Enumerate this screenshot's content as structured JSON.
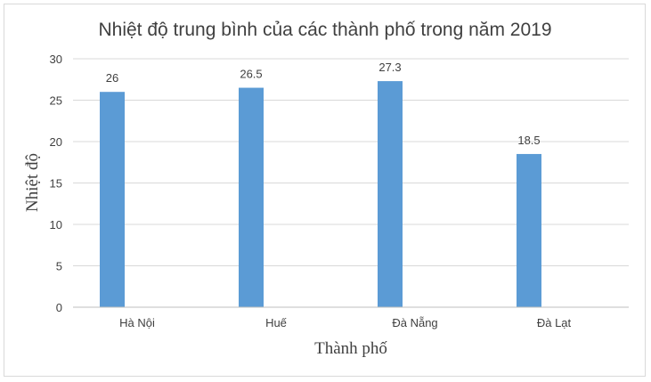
{
  "chart_data": {
    "type": "bar",
    "title": "Nhiệt độ trung bình của các thành phố trong năm 2019",
    "xlabel": "Thành phố",
    "ylabel": "Nhiệt độ",
    "categories": [
      "Hà Nội",
      "Huế",
      "Đà Nẵng",
      "Đà Lạt"
    ],
    "values": [
      26,
      26.5,
      27.3,
      18.5
    ],
    "value_labels": [
      "26",
      "26.5",
      "27.3",
      "18.5"
    ],
    "ylim": [
      0,
      30
    ],
    "yticks": [
      0,
      5,
      10,
      15,
      20,
      25,
      30
    ],
    "grid": true,
    "legend": "none",
    "bar_color": "#5b9bd5",
    "grid_color": "#d9d9d9",
    "text_color": "#404040"
  }
}
